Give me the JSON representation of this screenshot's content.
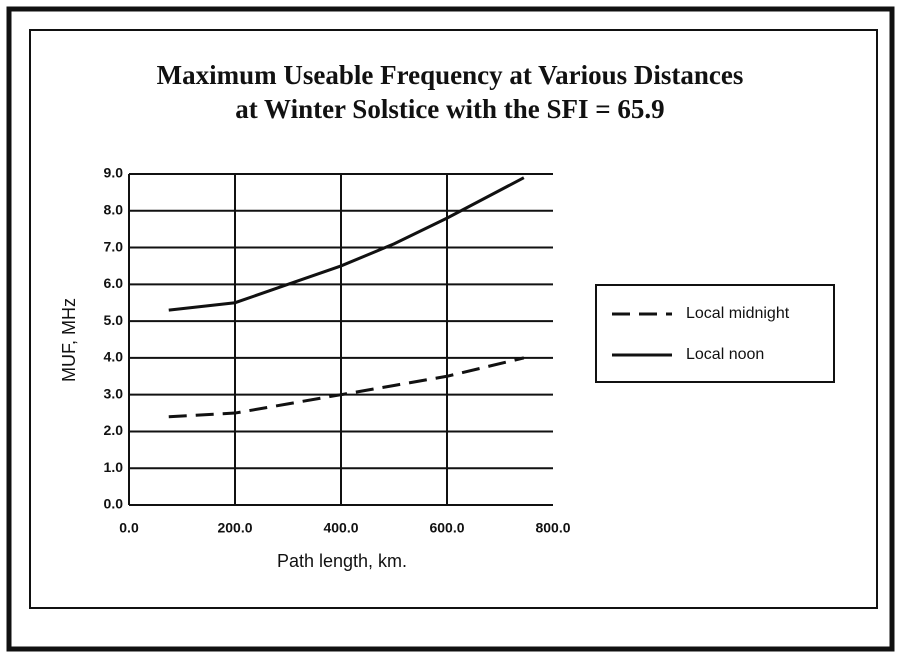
{
  "chart_data": {
    "type": "line",
    "title": [
      "Maximum Useable Frequency at Various Distances",
      "at Winter Solstice with the SFI = 65.9"
    ],
    "x_label": "Path length, km.",
    "y_label": "MUF, MHz",
    "x": [
      75,
      200,
      300,
      400,
      500,
      600,
      745
    ],
    "series": [
      {
        "name": "Local midnight",
        "color": "#111111",
        "dash": true,
        "values": [
          2.4,
          2.5,
          2.75,
          3.0,
          3.25,
          3.5,
          4.0
        ]
      },
      {
        "name": "Local noon",
        "color": "#111111",
        "dash": false,
        "values": [
          5.3,
          5.5,
          6.0,
          6.5,
          7.1,
          7.8,
          8.9
        ]
      }
    ],
    "xlim": [
      0,
      800
    ],
    "xticks": [
      {
        "value": 0,
        "label": "0.0"
      },
      {
        "value": 200,
        "label": "200.0"
      },
      {
        "value": 400,
        "label": "400.0"
      },
      {
        "value": 600,
        "label": "600.0"
      },
      {
        "value": 800,
        "label": "800.0"
      }
    ],
    "ylim": [
      0,
      9
    ],
    "yticks": [
      {
        "value": 0,
        "label": "0.0"
      },
      {
        "value": 1,
        "label": "1.0"
      },
      {
        "value": 2,
        "label": "2.0"
      },
      {
        "value": 3,
        "label": "3.0"
      },
      {
        "value": 4,
        "label": "4.0"
      },
      {
        "value": 5,
        "label": "5.0"
      },
      {
        "value": 6,
        "label": "6.0"
      },
      {
        "value": 7,
        "label": "7.0"
      },
      {
        "value": 8,
        "label": "8.0"
      },
      {
        "value": 9,
        "label": "9.0"
      }
    ],
    "grid": true,
    "legend": "right"
  }
}
